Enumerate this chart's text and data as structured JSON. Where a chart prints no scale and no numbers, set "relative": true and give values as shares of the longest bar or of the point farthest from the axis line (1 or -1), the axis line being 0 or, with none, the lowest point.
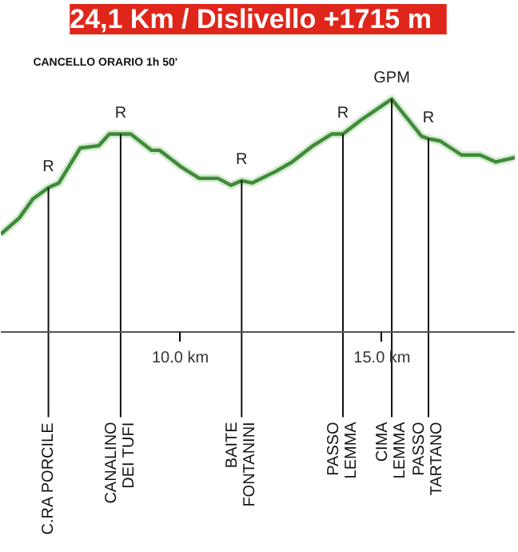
{
  "chart_data": {
    "type": "line",
    "title": "24,1 Km  /  Dislivello +1715 m",
    "relative": true,
    "series": [
      {
        "color": "#3f8a3a",
        "x": [
          5.55,
          6.01,
          6.34,
          6.73,
          6.99,
          7.52,
          7.98,
          8.24,
          8.52,
          8.77,
          9.29,
          9.49,
          10.01,
          10.47,
          10.93,
          11.26,
          11.52,
          11.78,
          12.37,
          12.77,
          13.29,
          13.75,
          14.03,
          14.48,
          15.24,
          15.98,
          16.15,
          16.44,
          16.97,
          17.43,
          17.82,
          18.31
        ],
        "values": [
          0.42,
          0.49,
          0.57,
          0.62,
          0.64,
          0.79,
          0.8,
          0.85,
          0.85,
          0.85,
          0.78,
          0.78,
          0.71,
          0.66,
          0.66,
          0.63,
          0.65,
          0.64,
          0.69,
          0.73,
          0.8,
          0.85,
          0.85,
          0.91,
          1.0,
          0.84,
          0.83,
          0.82,
          0.76,
          0.76,
          0.73,
          0.75
        ]
      }
    ],
    "xlim": [
      5.55,
      18.31
    ],
    "xticks": [
      {
        "value": 10,
        "label": "10.0 km"
      },
      {
        "value": 15,
        "label": "15.0 km"
      }
    ],
    "marker": "none",
    "line_style": "solid",
    "grid": false,
    "ref_lines": [
      {
        "axis": "x",
        "value": 6.73,
        "label": "C.RA PORCILE"
      },
      {
        "axis": "x",
        "value": 8.52,
        "label": "CANALINO\nDEI TUFI"
      },
      {
        "axis": "x",
        "value": 11.52,
        "label": "BAITE\nFONTANINI"
      },
      {
        "axis": "x",
        "value": 14.03,
        "label": "PASSO\nLEMMA"
      },
      {
        "axis": "x",
        "value": 15.24,
        "label": "CIMA\nLEMMA"
      },
      {
        "axis": "x",
        "value": 16.15,
        "label": "PASSO\nTARTANO"
      }
    ],
    "annotations": [
      "CANCELLO ORARIO 1h 50'",
      {
        "text": "R",
        "x": 6.73,
        "y": 0.62
      },
      {
        "text": "R",
        "x": 8.52,
        "y": 0.85
      },
      {
        "text": "R",
        "x": 11.52,
        "y": 0.65
      },
      {
        "text": "R",
        "x": 14.03,
        "y": 0.85
      },
      {
        "text": "GPM",
        "x": 15.24,
        "y": 1.0
      },
      {
        "text": "R",
        "x": 16.15,
        "y": 0.83
      }
    ]
  }
}
